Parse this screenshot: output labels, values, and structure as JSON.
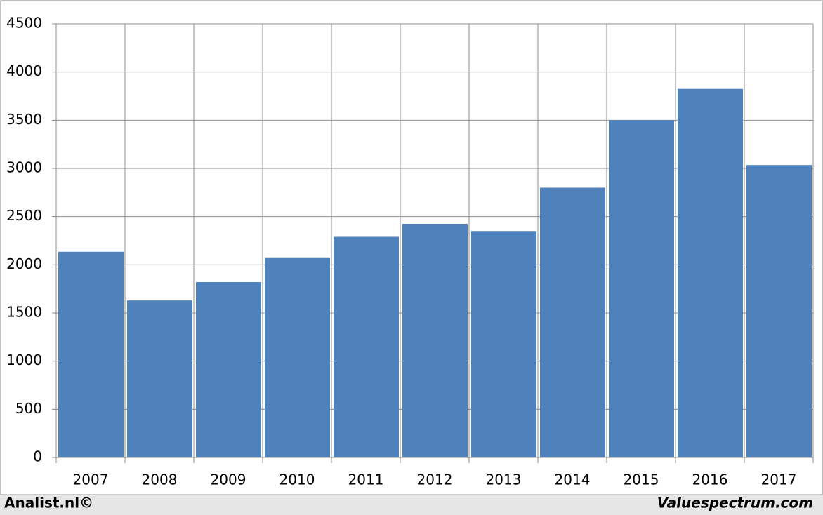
{
  "chart_data": {
    "type": "bar",
    "categories": [
      "2007",
      "2008",
      "2009",
      "2010",
      "2011",
      "2012",
      "2013",
      "2014",
      "2015",
      "2016",
      "2017"
    ],
    "values": [
      2135,
      1630,
      1820,
      2070,
      2290,
      2425,
      2350,
      2800,
      3500,
      3825,
      3035
    ],
    "color": "#4f81bd",
    "ylim": [
      0,
      4500
    ],
    "yticks": [
      0,
      500,
      1000,
      1500,
      2000,
      2500,
      3000,
      3500,
      4000,
      4500
    ],
    "grid": true
  },
  "footer": {
    "left": "Analist.nl©",
    "right": "Valuespectrum.com"
  }
}
